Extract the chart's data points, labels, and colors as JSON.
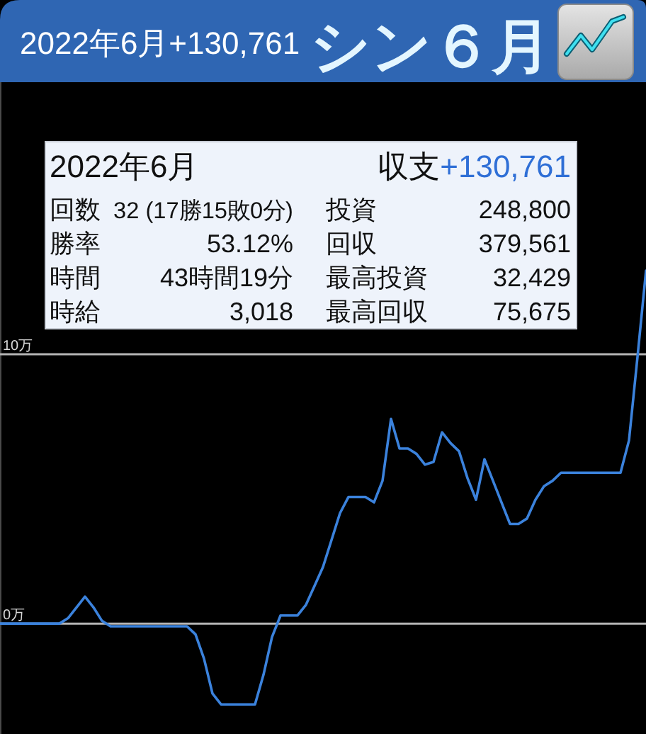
{
  "chart_data": {
    "type": "line",
    "title": "シン６月",
    "subtitle": "2022年6月+130,761",
    "annotations": [
      "2022年6月",
      "収支",
      "+130,761",
      "回数",
      "32 (17勝15敗0分)",
      "投資",
      "248,800",
      "勝率",
      "53.12%",
      "回収",
      "379,561",
      "時間",
      "43時間19分",
      "最高投資",
      "32,429",
      "時給",
      "3,018",
      "最高回収",
      "75,675"
    ],
    "categories": [
      null,
      null,
      null,
      null,
      null,
      null,
      null,
      null,
      null,
      null,
      null,
      null,
      null,
      null,
      null,
      null,
      null,
      null,
      null,
      null,
      null,
      null,
      null,
      null,
      null,
      null,
      null,
      null,
      null,
      null,
      null,
      null,
      null,
      null,
      null,
      null,
      null,
      null,
      null,
      null,
      null,
      null,
      null,
      null,
      null,
      null,
      null,
      null,
      null,
      null,
      null,
      null,
      null,
      null,
      null,
      null,
      null,
      null,
      null,
      null,
      null,
      null,
      null,
      null,
      null,
      null,
      null,
      null,
      null,
      null,
      null,
      null,
      null,
      null,
      null,
      null,
      null
    ],
    "series": [
      {
        "color": "#3b82dc",
        "values": [
          0,
          0,
          0,
          0,
          0,
          0,
          0,
          0,
          0.2,
          0.6,
          1.0,
          0.6,
          0.1,
          -0.1,
          -0.1,
          -0.1,
          -0.1,
          -0.1,
          -0.1,
          -0.1,
          -0.1,
          -0.1,
          -0.1,
          -0.4,
          -1.3,
          -2.6,
          -3.0,
          -3.0,
          -3.0,
          -3.0,
          -3.0,
          -1.9,
          -0.5,
          0.3,
          0.3,
          0.3,
          0.7,
          1.4,
          2.1,
          3.1,
          4.1,
          4.7,
          4.7,
          4.7,
          4.5,
          5.3,
          7.6,
          6.5,
          6.5,
          6.3,
          5.9,
          6.0,
          7.1,
          6.7,
          6.4,
          5.4,
          4.6,
          6.1,
          5.3,
          4.5,
          3.7,
          3.7,
          3.9,
          4.6,
          5.1,
          5.3,
          5.6,
          5.6,
          5.6,
          5.6,
          5.6,
          5.6,
          5.6,
          5.6,
          6.8,
          9.9,
          13.1
        ]
      }
    ],
    "ylim": [
      -4.1,
      20.1
    ],
    "yticks": [
      {
        "value": 0,
        "label": "0万"
      },
      {
        "value": 10,
        "label": "10万"
      }
    ],
    "grid": "y",
    "tick_labels": "y"
  }
}
